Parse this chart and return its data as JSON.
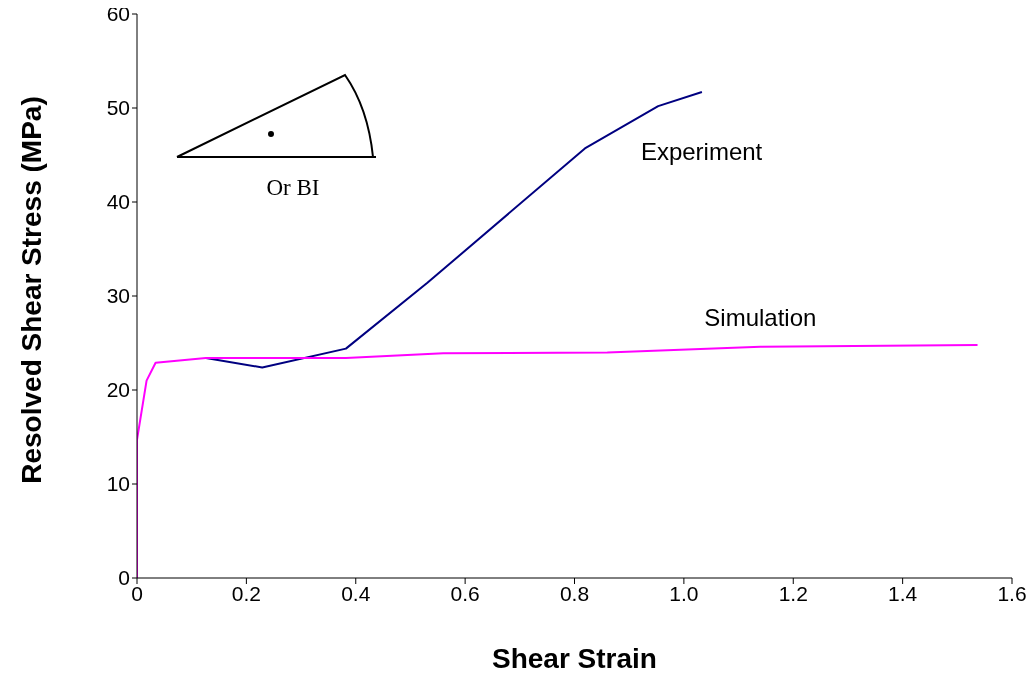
{
  "chart_data": {
    "type": "line",
    "xlabel": "Shear Strain",
    "ylabel": "Resolved Shear Stress (MPa)",
    "xlim": [
      0,
      1.6
    ],
    "xticks": [
      0,
      0.2,
      0.4,
      0.6,
      0.8,
      {
        "value": 1,
        "label": "1.0"
      },
      1.2,
      1.4,
      1.6
    ],
    "ylim": [
      0,
      60
    ],
    "yticks": [
      0,
      10,
      20,
      30,
      40,
      50,
      60
    ],
    "grid": false,
    "marker": "none",
    "line_style": "solid",
    "annotations": [
      "Or BI"
    ],
    "series": [
      {
        "name": "Experiment",
        "color": "#000080",
        "x": [
          0.126,
          0.229,
          0.382,
          0.531,
          0.819,
          0.953,
          1.033
        ],
        "values": [
          23.4,
          22.4,
          24.4,
          31.4,
          45.7,
          50.2,
          51.7
        ]
      },
      {
        "name": "Simulation",
        "color": "#ff00ff",
        "x": [
          0,
          0,
          0.0175,
          0.034,
          0.126,
          0.382,
          0.56,
          0.86,
          1.14,
          1.537
        ],
        "values": [
          0,
          14.7,
          21.0,
          22.9,
          23.4,
          23.4,
          23.9,
          24.0,
          24.6,
          24.8
        ]
      }
    ]
  }
}
